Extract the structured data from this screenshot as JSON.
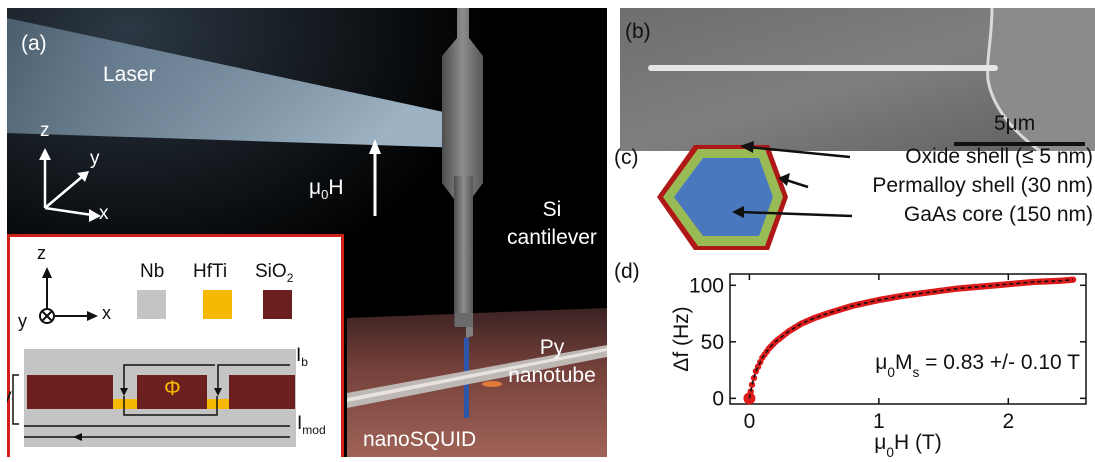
{
  "panel_a": {
    "label": "(a)",
    "laser": "Laser",
    "axes": {
      "z": "z",
      "y": "y",
      "x": "x"
    },
    "field_label": "μ",
    "field_sub": "0",
    "field_suffix": "H",
    "cantilever_line1": "Si",
    "cantilever_line2": "cantilever",
    "py_line1": "Py",
    "py_line2": "nanotube",
    "squid_label": "nanoSQUID",
    "inset": {
      "axes": {
        "z": "z",
        "y": "y",
        "x": "x"
      },
      "legend": [
        {
          "label": "Nb",
          "color": "#c4c4c4"
        },
        {
          "label": "HfTi",
          "color": "#f6b800"
        },
        {
          "label": "SiO",
          "sub": "2",
          "color": "#6b1f1f"
        }
      ],
      "phi": "Φ",
      "v_label": "V",
      "ib_label": "I",
      "ib_sub": "b",
      "imod_label": "I",
      "imod_sub": "mod"
    }
  },
  "panel_b": {
    "label": "(b)",
    "scale": "5μm"
  },
  "panel_c": {
    "label": "(c)",
    "layers": [
      {
        "name": "Oxide shell (≤ 5 nm)",
        "color": "#b01818"
      },
      {
        "name": "Permalloy shell (30 nm)",
        "color": "#99bb55"
      },
      {
        "name": "GaAs core (150 nm)",
        "color": "#4a78be"
      }
    ]
  },
  "panel_d": {
    "label": "(d)",
    "chart_data": {
      "type": "scatter",
      "xlabel": "μ0H (T)",
      "ylabel": "Δf (Hz)",
      "xlim": [
        -0.15,
        2.6
      ],
      "ylim": [
        -5,
        110
      ],
      "xticks": [
        0,
        1,
        2
      ],
      "yticks": [
        0,
        50,
        100
      ],
      "annotation": "μ0Ms = 0.83 +/- 0.10 T",
      "series": [
        {
          "style": "red markers",
          "color": "#dd1b1b",
          "x": [
            0.0,
            0.02,
            0.05,
            0.1,
            0.15,
            0.2,
            0.3,
            0.4,
            0.5,
            0.6,
            0.8,
            1.0,
            1.2,
            1.4,
            1.6,
            1.8,
            2.0,
            2.2,
            2.4,
            2.5
          ],
          "y": [
            0,
            12,
            24,
            36,
            44,
            50,
            59,
            66,
            71,
            75,
            82,
            87,
            91,
            94,
            97,
            99,
            101,
            103,
            104,
            105
          ]
        },
        {
          "style": "dashed fit",
          "color": "#111111"
        }
      ]
    }
  }
}
